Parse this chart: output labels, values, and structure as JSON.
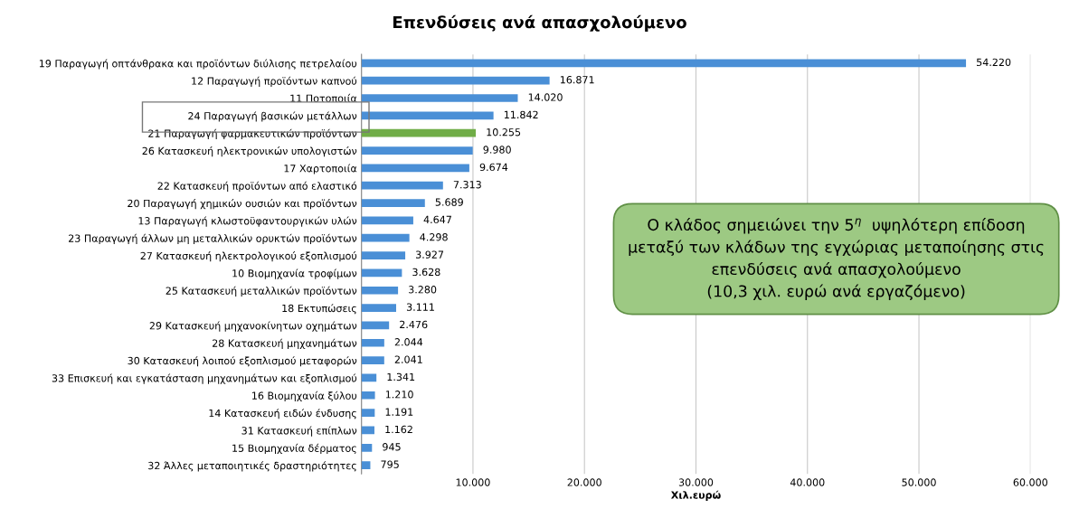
{
  "chart_data": {
    "type": "bar",
    "orientation": "horizontal",
    "title": "Επενδύσεις ανά απασχολούμενο",
    "xlabel": "Χιλ.ευρώ",
    "categories": [
      "19 Παραγωγή οπτάνθρακα και προϊόντων διύλισης πετρελαίου",
      "12 Παραγωγή προϊόντων καπνού",
      "11 Ποτοποιία",
      "24 Παραγωγή βασικών μετάλλων",
      "21 Παραγωγή φαρμακευτικών προϊόντων",
      "26 Κατασκευή ηλεκτρονικών υπολογιστών",
      "17 Χαρτοποιία",
      "22 Κατασκευή προϊόντων από ελαστικό",
      "20 Παραγωγή χημικών ουσιών και προϊόντων",
      "13 Παραγωγή κλωστοϋφαντουργικών υλών",
      "23 Παραγωγή άλλων μη μεταλλικών ορυκτών προϊόντων",
      "27 Κατασκευή ηλεκτρολογικού εξοπλισμού",
      "10 Βιομηχανία τροφίμων",
      "25 Κατασκευή μεταλλικών προϊόντων",
      "18 Εκτυπώσεις",
      "29 Κατασκευή μηχανοκίνητων οχημάτων",
      "28 Κατασκευή μηχανημάτων",
      "30 Κατασκευή λοιπού εξοπλισμού μεταφορών",
      "33 Επισκευή και εγκατάσταση μηχανημάτων και εξοπλισμού",
      "16 Βιομηχανία ξύλου",
      "14 Κατασκευή ειδών ένδυσης",
      "31 Κατασκευή επίπλων",
      "15 Βιομηχανία δέρματος",
      "32 Άλλες μεταποιητικές δραστηριότητες"
    ],
    "values": [
      54220,
      16871,
      14020,
      11842,
      10255,
      9980,
      9674,
      7313,
      5689,
      4647,
      4298,
      3927,
      3628,
      3280,
      3111,
      2476,
      2044,
      2041,
      1341,
      1210,
      1191,
      1162,
      945,
      795
    ],
    "value_labels": [
      "54.220",
      "16.871",
      "14.020",
      "11.842",
      "10.255",
      "9.980",
      "9.674",
      "7.313",
      "5.689",
      "4.647",
      "4.298",
      "3.927",
      "3.628",
      "3.280",
      "3.111",
      "2.476",
      "2.044",
      "2.041",
      "1.341",
      "1.210",
      "1.191",
      "1.162",
      "945",
      "795"
    ],
    "colors": [
      "#4a8fd6",
      "#4a8fd6",
      "#4a8fd6",
      "#4a8fd6",
      "#70ad47",
      "#4a8fd6",
      "#4a8fd6",
      "#4a8fd6",
      "#4a8fd6",
      "#4a8fd6",
      "#4a8fd6",
      "#4a8fd6",
      "#4a8fd6",
      "#4a8fd6",
      "#4a8fd6",
      "#4a8fd6",
      "#4a8fd6",
      "#4a8fd6",
      "#4a8fd6",
      "#4a8fd6",
      "#4a8fd6",
      "#4a8fd6",
      "#4a8fd6",
      "#4a8fd6"
    ],
    "xlim": [
      0,
      60000
    ],
    "xticks": [
      {
        "value": 0,
        "label": null
      },
      {
        "value": 10000,
        "label": "10.000"
      },
      {
        "value": 20000,
        "label": "20.000"
      },
      {
        "value": 30000,
        "label": "30.000"
      },
      {
        "value": 40000,
        "label": "40.000"
      },
      {
        "value": 50000,
        "label": "50.000"
      },
      {
        "value": 60000,
        "label": "60.000"
      }
    ],
    "grid": "x",
    "legend": false,
    "annotations": [
      "Ο κλάδος σημειώνει την 5$^{η}$  υψηλότερη επίδοση\nμεταξύ των κλάδων της εγχώριας μεταποίησης στις\nεπενδύσεις ανά απασχολούμενο\n(10,3 χιλ. ευρώ ανά εργαζόμενο)"
    ]
  }
}
